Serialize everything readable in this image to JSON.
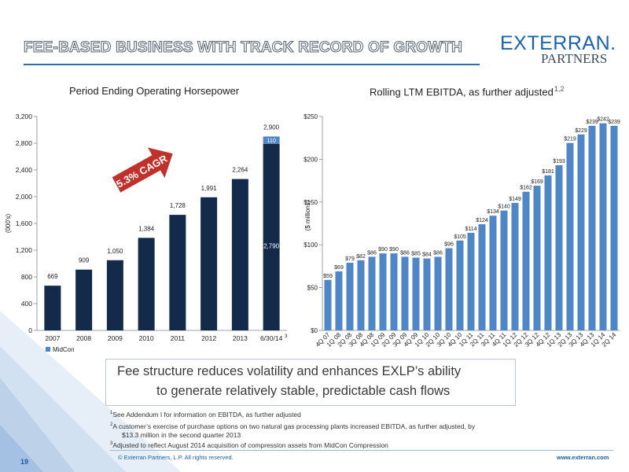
{
  "title": "FEE-BASED BUSINESS WITH TRACK RECORD OF GROWTH",
  "logo": {
    "main": "EXTERRAN.",
    "sub": "PARTNERS"
  },
  "colors": {
    "dark_bar": "#132a4a",
    "light_bar": "#4f86c6",
    "accent_red": "#c0312b",
    "brand_blue": "#1a63b0"
  },
  "cagr_label": "25.3% CAGR",
  "callout": {
    "line1": "Fee structure reduces volatility and enhances EXLP’s ability",
    "line2": "to generate relatively stable, predictable cash flows"
  },
  "footnotes": [
    {
      "mark": "1",
      "text": "See Addendum I for information on EBITDA, as further adjusted"
    },
    {
      "mark": "2",
      "text": "A customer’s exercise of purchase options on two natural gas processing plants increased EBITDA, as further adjusted, by"
    },
    {
      "mark": "",
      "text": "$13.3 million in the second quarter 2013"
    },
    {
      "mark": "3",
      "text": "Adjusted to reflect August 2014 acquisition of compression assets from MidCon Compression"
    }
  ],
  "footer": {
    "page": "19",
    "copyright": "© Exterran Partners, L.P. All rights reserved.",
    "website": "www.exterran.com"
  },
  "chart_data": [
    {
      "type": "bar",
      "title": "Period Ending Operating Horsepower",
      "ylabel": "(000's)",
      "ylim": [
        0,
        3200
      ],
      "yticks": [
        0,
        400,
        800,
        1200,
        1600,
        2000,
        2400,
        2800,
        3200
      ],
      "ytick_labels": [
        "0",
        "400",
        "800",
        "1,200",
        "1,600",
        "2,000",
        "2,400",
        "2,800",
        "3,200"
      ],
      "categories": [
        "2007",
        "2008",
        "2009",
        "2010",
        "2011",
        "2012",
        "2013",
        "6/30/14"
      ],
      "category_note": {
        "index": 7,
        "mark": "3"
      },
      "stacked": true,
      "series": [
        {
          "name": "",
          "values": [
            669,
            909,
            1050,
            1384,
            1728,
            1991,
            2264,
            2790
          ],
          "labels": [
            "669",
            "909",
            "1,050",
            "1,384",
            "1,728",
            "1,991",
            "2,264",
            "2,790"
          ]
        },
        {
          "name": "MidCon",
          "values": [
            0,
            0,
            0,
            0,
            0,
            0,
            0,
            110
          ],
          "labels": [
            "",
            "",
            "",
            "",
            "",
            "",
            "",
            "110"
          ]
        }
      ],
      "totals": [
        "",
        "",
        "",
        "",
        "",
        "",
        "",
        "2,900"
      ],
      "legend": {
        "position": "bottom-left",
        "entries": [
          "MidCon"
        ]
      }
    },
    {
      "type": "bar",
      "title": "Rolling LTM EBITDA, as further adjusted",
      "title_note": "1,2",
      "ylabel": "($ millions)",
      "ylim": [
        0,
        250
      ],
      "yticks": [
        0,
        50,
        100,
        150,
        200,
        250
      ],
      "ytick_labels": [
        "$0",
        "$50",
        "$100",
        "$150",
        "$200",
        "$250"
      ],
      "categories": [
        "4Q 07",
        "1Q 08",
        "2Q 08",
        "3Q 08",
        "4Q 08",
        "1Q 09",
        "2Q 09",
        "3Q 09",
        "4Q 09",
        "1Q 10",
        "2Q 10",
        "3Q 10",
        "4Q 10",
        "1Q 11",
        "2Q 11",
        "3Q 11",
        "4Q 11",
        "1Q 12",
        "2Q 12",
        "3Q 12",
        "4Q 12",
        "1Q 13",
        "2Q 13",
        "3Q 13",
        "4Q 13",
        "1Q 14",
        "2Q 14"
      ],
      "series": [
        {
          "name": "",
          "values": [
            59,
            69,
            79,
            82,
            86,
            90,
            90,
            86,
            85,
            84,
            86,
            96,
            105,
            114,
            124,
            134,
            140,
            149,
            162,
            169,
            181,
            193,
            219,
            229,
            239,
            242,
            239
          ],
          "labels": [
            "$59",
            "$69",
            "$79",
            "$82",
            "$86",
            "$90",
            "$90",
            "$86",
            "$85",
            "$84",
            "$86",
            "$96",
            "$105",
            "$114",
            "$124",
            "$134",
            "$140",
            "$149",
            "$162",
            "$169",
            "$181",
            "$193",
            "$219",
            "$229",
            "$239",
            "$242",
            "$239"
          ]
        }
      ]
    }
  ]
}
